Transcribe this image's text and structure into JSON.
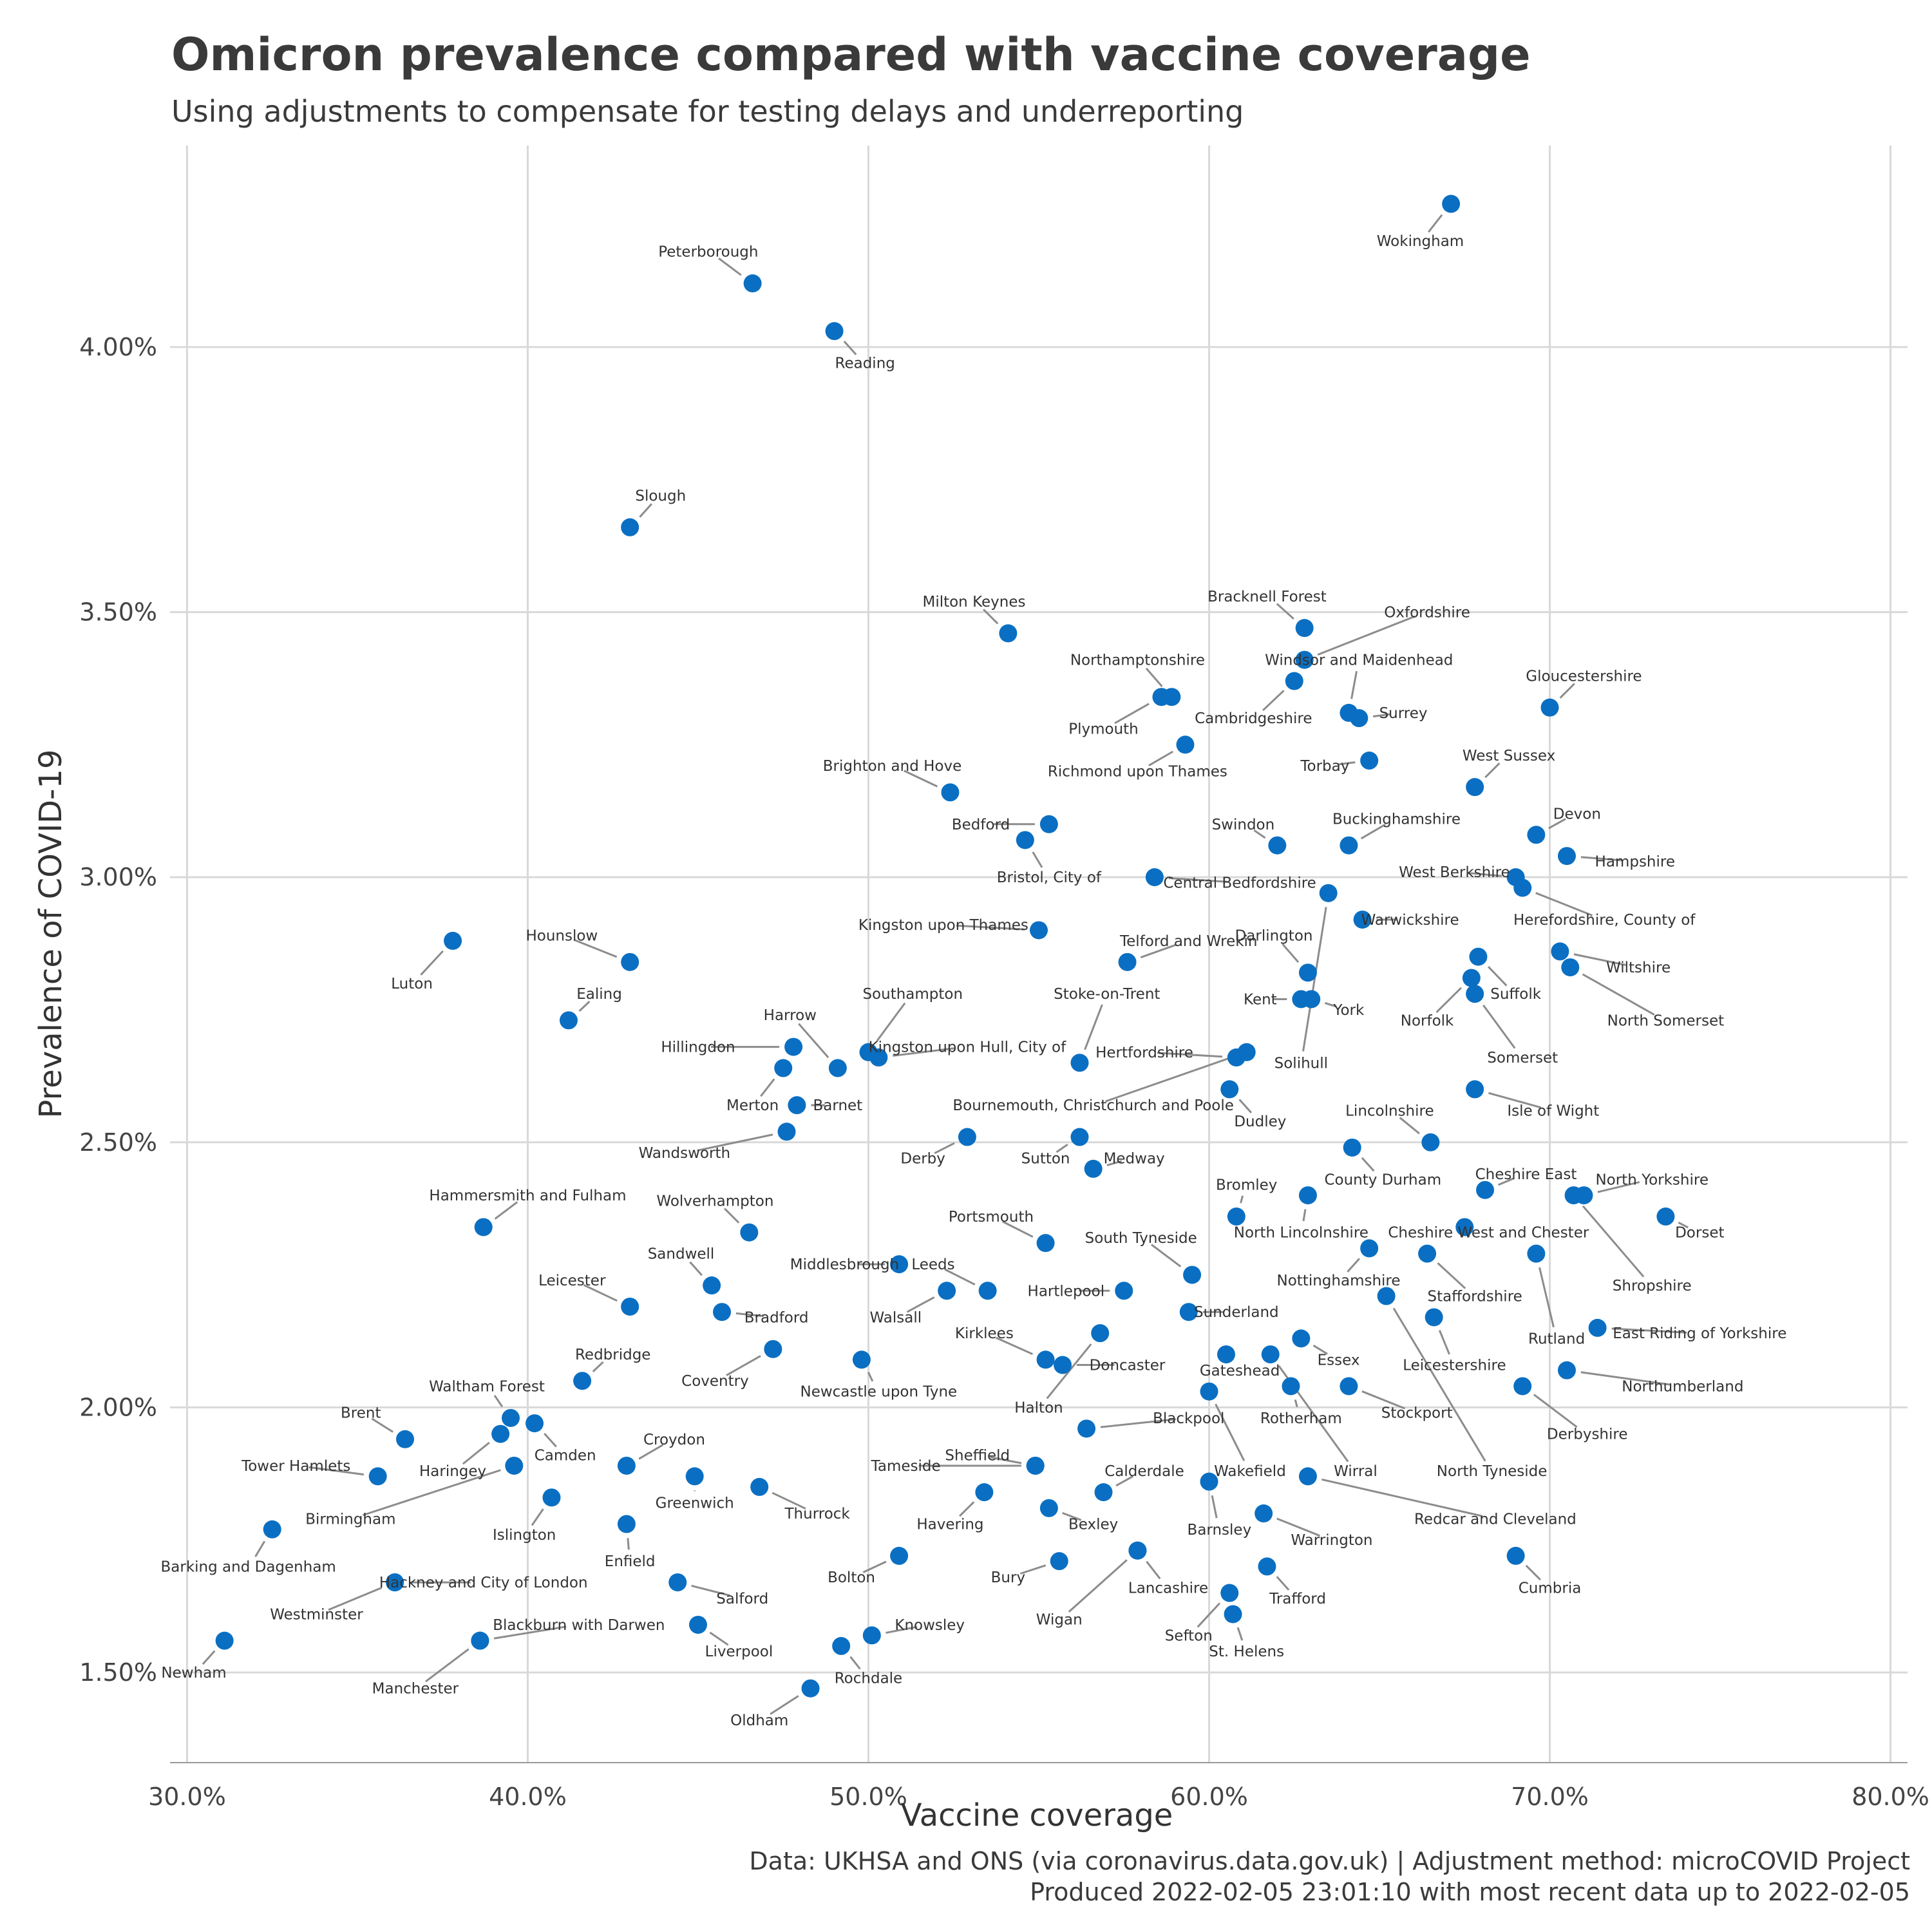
{
  "title": "Omicron prevalence compared with vaccine coverage",
  "subtitle": "Using adjustments to compensate for testing delays and underreporting",
  "caption_line1": "Data: UKHSA and ONS (via coronavirus.data.gov.uk) | Adjustment method: microCOVID Project",
  "caption_line2": "Produced 2022-02-05 23:01:10 with most recent data up to 2022-02-05",
  "colors": {
    "point": "#0a6fc2",
    "grid": "#d9d9d9",
    "leader": "#8c8c8c"
  },
  "chart_data": {
    "type": "scatter",
    "xlabel": "Vaccine coverage",
    "ylabel": "Prevalence of COVID-19",
    "xlim": [
      29.5,
      80.5
    ],
    "ylim": [
      1.33,
      4.38
    ],
    "x_ticks": [
      {
        "value": 30,
        "label": "30.0%"
      },
      {
        "value": 40,
        "label": "40.0%"
      },
      {
        "value": 50,
        "label": "50.0%"
      },
      {
        "value": 60,
        "label": "60.0%"
      },
      {
        "value": 70,
        "label": "70.0%"
      },
      {
        "value": 80,
        "label": "80.0%"
      }
    ],
    "y_ticks": [
      {
        "value": 1.5,
        "label": "1.50%"
      },
      {
        "value": 2.0,
        "label": "2.00%"
      },
      {
        "value": 2.5,
        "label": "2.50%"
      },
      {
        "value": 3.0,
        "label": "3.00%"
      },
      {
        "value": 3.5,
        "label": "3.50%"
      },
      {
        "value": 4.0,
        "label": "4.00%"
      }
    ],
    "grid": true,
    "points": [
      {
        "name": "Wokingham",
        "x": 67.1,
        "y": 4.27,
        "lx": 66.2,
        "ly": 4.2
      },
      {
        "name": "Peterborough",
        "x": 46.6,
        "y": 4.12,
        "lx": 45.3,
        "ly": 4.18
      },
      {
        "name": "Reading",
        "x": 49.0,
        "y": 4.03,
        "lx": 49.9,
        "ly": 3.97
      },
      {
        "name": "Slough",
        "x": 43.0,
        "y": 3.66,
        "lx": 43.9,
        "ly": 3.72
      },
      {
        "name": "Milton Keynes",
        "x": 54.1,
        "y": 3.46,
        "lx": 53.1,
        "ly": 3.52
      },
      {
        "name": "Bracknell Forest",
        "x": 62.8,
        "y": 3.47,
        "lx": 61.7,
        "ly": 3.53
      },
      {
        "name": "Oxfordshire",
        "x": 62.8,
        "y": 3.41,
        "lx": 66.4,
        "ly": 3.5
      },
      {
        "name": "Windsor and Maidenhead",
        "x": 64.1,
        "y": 3.31,
        "lx": 64.4,
        "ly": 3.41
      },
      {
        "name": "Northamptonshire",
        "x": 58.9,
        "y": 3.34,
        "lx": 57.9,
        "ly": 3.41
      },
      {
        "name": "Cambridgeshire",
        "x": 62.5,
        "y": 3.37,
        "lx": 61.3,
        "ly": 3.3
      },
      {
        "name": "Surrey",
        "x": 64.4,
        "y": 3.3,
        "lx": 65.7,
        "ly": 3.31
      },
      {
        "name": "Gloucestershire",
        "x": 70.0,
        "y": 3.32,
        "lx": 71.0,
        "ly": 3.38
      },
      {
        "name": "Plymouth",
        "x": 58.6,
        "y": 3.34,
        "lx": 56.9,
        "ly": 3.28
      },
      {
        "name": "Richmond upon Thames",
        "x": 59.3,
        "y": 3.25,
        "lx": 57.9,
        "ly": 3.2
      },
      {
        "name": "Torbay",
        "x": 64.7,
        "y": 3.22,
        "lx": 63.4,
        "ly": 3.21
      },
      {
        "name": "West Sussex",
        "x": 67.8,
        "y": 3.17,
        "lx": 68.8,
        "ly": 3.23
      },
      {
        "name": "Brighton and Hove",
        "x": 52.4,
        "y": 3.16,
        "lx": 50.7,
        "ly": 3.21
      },
      {
        "name": "Bedford",
        "x": 55.3,
        "y": 3.1,
        "lx": 53.3,
        "ly": 3.1
      },
      {
        "name": "Swindon",
        "x": 62.0,
        "y": 3.06,
        "lx": 61.0,
        "ly": 3.1
      },
      {
        "name": "Buckinghamshire",
        "x": 64.1,
        "y": 3.06,
        "lx": 65.5,
        "ly": 3.11
      },
      {
        "name": "Devon",
        "x": 69.6,
        "y": 3.08,
        "lx": 70.8,
        "ly": 3.12
      },
      {
        "name": "Bristol, City of",
        "x": 54.6,
        "y": 3.07,
        "lx": 55.3,
        "ly": 3.0
      },
      {
        "name": "Hampshire",
        "x": 70.5,
        "y": 3.04,
        "lx": 72.5,
        "ly": 3.03
      },
      {
        "name": "West Berkshire",
        "x": 69.0,
        "y": 3.0,
        "lx": 67.2,
        "ly": 3.01
      },
      {
        "name": "Central Bedfordshire",
        "x": 58.4,
        "y": 3.0,
        "lx": 60.9,
        "ly": 2.99
      },
      {
        "name": "Herefordshire, County of",
        "x": 69.2,
        "y": 2.98,
        "lx": 71.6,
        "ly": 2.92
      },
      {
        "name": "Solihull",
        "x": 63.5,
        "y": 2.97,
        "lx": 62.7,
        "ly": 2.65
      },
      {
        "name": "Warwickshire",
        "x": 64.5,
        "y": 2.92,
        "lx": 65.9,
        "ly": 2.92
      },
      {
        "name": "Kingston upon Thames",
        "x": 55.0,
        "y": 2.9,
        "lx": 52.2,
        "ly": 2.91
      },
      {
        "name": "Telford and Wrekin",
        "x": 57.6,
        "y": 2.84,
        "lx": 59.4,
        "ly": 2.88
      },
      {
        "name": "Luton",
        "x": 37.8,
        "y": 2.88,
        "lx": 36.6,
        "ly": 2.8
      },
      {
        "name": "Hounslow",
        "x": 43.0,
        "y": 2.84,
        "lx": 41.0,
        "ly": 2.89
      },
      {
        "name": "Darlington",
        "x": 62.9,
        "y": 2.82,
        "lx": 61.9,
        "ly": 2.89
      },
      {
        "name": "Wiltshire",
        "x": 70.3,
        "y": 2.86,
        "lx": 72.6,
        "ly": 2.83
      },
      {
        "name": "Norfolk",
        "x": 67.7,
        "y": 2.81,
        "lx": 66.4,
        "ly": 2.73
      },
      {
        "name": "Suffolk",
        "x": 67.9,
        "y": 2.85,
        "lx": 69.0,
        "ly": 2.78
      },
      {
        "name": "North Somerset",
        "x": 70.6,
        "y": 2.83,
        "lx": 73.4,
        "ly": 2.73
      },
      {
        "name": "Kent",
        "x": 62.7,
        "y": 2.77,
        "lx": 61.5,
        "ly": 2.77
      },
      {
        "name": "York",
        "x": 63.0,
        "y": 2.77,
        "lx": 64.1,
        "ly": 2.75
      },
      {
        "name": "Ealing",
        "x": 41.2,
        "y": 2.73,
        "lx": 42.1,
        "ly": 2.78
      },
      {
        "name": "Southampton",
        "x": 50.0,
        "y": 2.67,
        "lx": 51.3,
        "ly": 2.78
      },
      {
        "name": "Stoke-on-Trent",
        "x": 56.2,
        "y": 2.65,
        "lx": 57.0,
        "ly": 2.78
      },
      {
        "name": "Harrow",
        "x": 49.1,
        "y": 2.64,
        "lx": 47.7,
        "ly": 2.74
      },
      {
        "name": "Hillingdon",
        "x": 47.8,
        "y": 2.68,
        "lx": 45.0,
        "ly": 2.68
      },
      {
        "name": "Kingston upon Hull, City of",
        "x": 50.3,
        "y": 2.66,
        "lx": 52.9,
        "ly": 2.68
      },
      {
        "name": "Hertfordshire",
        "x": 60.8,
        "y": 2.66,
        "lx": 58.1,
        "ly": 2.67
      },
      {
        "name": "Merton",
        "x": 47.5,
        "y": 2.64,
        "lx": 46.6,
        "ly": 2.57
      },
      {
        "name": "Barnet",
        "x": 47.9,
        "y": 2.57,
        "lx": 49.1,
        "ly": 2.57
      },
      {
        "name": "Bournemouth, Christchurch and Poole",
        "x": 61.1,
        "y": 2.67,
        "lx": 56.6,
        "ly": 2.57
      },
      {
        "name": "Dudley",
        "x": 60.6,
        "y": 2.6,
        "lx": 61.5,
        "ly": 2.54
      },
      {
        "name": "Somerset",
        "x": 67.8,
        "y": 2.78,
        "lx": 69.2,
        "ly": 2.66
      },
      {
        "name": "Isle of Wight",
        "x": 67.8,
        "y": 2.6,
        "lx": 70.1,
        "ly": 2.56
      },
      {
        "name": "Lincolnshire",
        "x": 66.5,
        "y": 2.5,
        "lx": 65.3,
        "ly": 2.56
      },
      {
        "name": "Wandsworth",
        "x": 47.6,
        "y": 2.52,
        "lx": 44.6,
        "ly": 2.48
      },
      {
        "name": "Derby",
        "x": 52.9,
        "y": 2.51,
        "lx": 51.6,
        "ly": 2.47
      },
      {
        "name": "Sutton",
        "x": 56.2,
        "y": 2.51,
        "lx": 55.2,
        "ly": 2.47
      },
      {
        "name": "Medway",
        "x": 56.6,
        "y": 2.45,
        "lx": 57.8,
        "ly": 2.47
      },
      {
        "name": "County Durham",
        "x": 64.2,
        "y": 2.49,
        "lx": 65.1,
        "ly": 2.43
      },
      {
        "name": "Cheshire East",
        "x": 68.1,
        "y": 2.41,
        "lx": 69.3,
        "ly": 2.44
      },
      {
        "name": "North Yorkshire",
        "x": 71.0,
        "y": 2.4,
        "lx": 73.0,
        "ly": 2.43
      },
      {
        "name": "Bromley",
        "x": 60.8,
        "y": 2.36,
        "lx": 61.1,
        "ly": 2.42
      },
      {
        "name": "Hammersmith and Fulham",
        "x": 38.7,
        "y": 2.34,
        "lx": 40.0,
        "ly": 2.4
      },
      {
        "name": "Wolverhampton",
        "x": 46.5,
        "y": 2.33,
        "lx": 45.5,
        "ly": 2.39
      },
      {
        "name": "Portsmouth",
        "x": 55.2,
        "y": 2.31,
        "lx": 53.6,
        "ly": 2.36
      },
      {
        "name": "North Lincolnshire",
        "x": 62.9,
        "y": 2.4,
        "lx": 62.7,
        "ly": 2.33
      },
      {
        "name": "Cheshire West and Chester",
        "x": 67.5,
        "y": 2.34,
        "lx": 68.2,
        "ly": 2.33
      },
      {
        "name": "Dorset",
        "x": 73.4,
        "y": 2.36,
        "lx": 74.4,
        "ly": 2.33
      },
      {
        "name": "South Tyneside",
        "x": 59.5,
        "y": 2.25,
        "lx": 58.0,
        "ly": 2.32
      },
      {
        "name": "Shropshire",
        "x": 70.7,
        "y": 2.4,
        "lx": 73.0,
        "ly": 2.23
      },
      {
        "name": "Sandwell",
        "x": 45.4,
        "y": 2.23,
        "lx": 44.5,
        "ly": 2.29
      },
      {
        "name": "Middlesbrough",
        "x": 50.9,
        "y": 2.27,
        "lx": 49.3,
        "ly": 2.27
      },
      {
        "name": "Leeds",
        "x": 53.5,
        "y": 2.22,
        "lx": 51.9,
        "ly": 2.27
      },
      {
        "name": "Nottinghamshire",
        "x": 64.7,
        "y": 2.3,
        "lx": 63.8,
        "ly": 2.24
      },
      {
        "name": "Staffordshire",
        "x": 66.4,
        "y": 2.29,
        "lx": 67.8,
        "ly": 2.21
      },
      {
        "name": "Leicester",
        "x": 43.0,
        "y": 2.19,
        "lx": 41.3,
        "ly": 2.24
      },
      {
        "name": "Bradford",
        "x": 45.7,
        "y": 2.18,
        "lx": 47.3,
        "ly": 2.17
      },
      {
        "name": "Walsall",
        "x": 52.3,
        "y": 2.22,
        "lx": 50.8,
        "ly": 2.17
      },
      {
        "name": "Hartlepool",
        "x": 57.5,
        "y": 2.22,
        "lx": 55.8,
        "ly": 2.22
      },
      {
        "name": "Sunderland",
        "x": 59.4,
        "y": 2.18,
        "lx": 60.8,
        "ly": 2.18
      },
      {
        "name": "Rutland",
        "x": 69.6,
        "y": 2.29,
        "lx": 70.2,
        "ly": 2.13
      },
      {
        "name": "East Riding of Yorkshire",
        "x": 71.4,
        "y": 2.15,
        "lx": 74.4,
        "ly": 2.14
      },
      {
        "name": "Kirklees",
        "x": 55.2,
        "y": 2.09,
        "lx": 53.4,
        "ly": 2.14
      },
      {
        "name": "Leicestershire",
        "x": 66.6,
        "y": 2.17,
        "lx": 67.2,
        "ly": 2.08
      },
      {
        "name": "Coventry",
        "x": 47.2,
        "y": 2.11,
        "lx": 45.5,
        "ly": 2.05
      },
      {
        "name": "Newcastle upon Tyne",
        "x": 49.8,
        "y": 2.09,
        "lx": 50.3,
        "ly": 2.03
      },
      {
        "name": "Redbridge",
        "x": 41.6,
        "y": 2.05,
        "lx": 42.5,
        "ly": 2.1
      },
      {
        "name": "Doncaster",
        "x": 55.7,
        "y": 2.08,
        "lx": 57.6,
        "ly": 2.08
      },
      {
        "name": "Gateshead",
        "x": 60.5,
        "y": 2.1,
        "lx": 60.9,
        "ly": 2.07
      },
      {
        "name": "Essex",
        "x": 62.7,
        "y": 2.13,
        "lx": 63.8,
        "ly": 2.09
      },
      {
        "name": "Halton",
        "x": 56.8,
        "y": 2.14,
        "lx": 55.0,
        "ly": 2.0
      },
      {
        "name": "Northumberland",
        "x": 70.5,
        "y": 2.07,
        "lx": 73.9,
        "ly": 2.04
      },
      {
        "name": "Waltham Forest",
        "x": 39.5,
        "y": 1.98,
        "lx": 38.8,
        "ly": 2.04
      },
      {
        "name": "Brent",
        "x": 36.4,
        "y": 1.94,
        "lx": 35.1,
        "ly": 1.99
      },
      {
        "name": "Rotherham",
        "x": 62.4,
        "y": 2.04,
        "lx": 62.7,
        "ly": 1.98
      },
      {
        "name": "Stockport",
        "x": 64.1,
        "y": 2.04,
        "lx": 66.1,
        "ly": 1.99
      },
      {
        "name": "Blackpool",
        "x": 56.4,
        "y": 1.96,
        "lx": 59.4,
        "ly": 1.98
      },
      {
        "name": "Derbyshire",
        "x": 69.2,
        "y": 2.04,
        "lx": 71.1,
        "ly": 1.95
      },
      {
        "name": "Camden",
        "x": 40.2,
        "y": 1.97,
        "lx": 41.1,
        "ly": 1.91
      },
      {
        "name": "Croydon",
        "x": 42.9,
        "y": 1.89,
        "lx": 44.3,
        "ly": 1.94
      },
      {
        "name": "Haringey",
        "x": 39.2,
        "y": 1.95,
        "lx": 37.8,
        "ly": 1.88
      },
      {
        "name": "Tower Hamlets",
        "x": 35.6,
        "y": 1.87,
        "lx": 33.2,
        "ly": 1.89
      },
      {
        "name": "Tameside",
        "x": 54.9,
        "y": 1.89,
        "lx": 51.1,
        "ly": 1.89
      },
      {
        "name": "Sheffield",
        "x": 54.9,
        "y": 1.89,
        "lx": 53.2,
        "ly": 1.91
      },
      {
        "name": "Calderdale",
        "x": 56.9,
        "y": 1.84,
        "lx": 58.1,
        "ly": 1.88
      },
      {
        "name": "Wakefield",
        "x": 60.0,
        "y": 2.03,
        "lx": 61.2,
        "ly": 1.88
      },
      {
        "name": "Wirral",
        "x": 61.8,
        "y": 2.1,
        "lx": 64.3,
        "ly": 1.88
      },
      {
        "name": "North Tyneside",
        "x": 65.2,
        "y": 2.21,
        "lx": 68.3,
        "ly": 1.88
      },
      {
        "name": "Thurrock",
        "x": 46.8,
        "y": 1.85,
        "lx": 48.5,
        "ly": 1.8
      },
      {
        "name": "Greenwich",
        "x": 44.9,
        "y": 1.87,
        "lx": 44.9,
        "ly": 1.82
      },
      {
        "name": "Birmingham",
        "x": 39.6,
        "y": 1.89,
        "lx": 34.8,
        "ly": 1.79
      },
      {
        "name": "Islington",
        "x": 40.7,
        "y": 1.83,
        "lx": 39.9,
        "ly": 1.76
      },
      {
        "name": "Havering",
        "x": 53.4,
        "y": 1.84,
        "lx": 52.4,
        "ly": 1.78
      },
      {
        "name": "Bexley",
        "x": 55.3,
        "y": 1.81,
        "lx": 56.6,
        "ly": 1.78
      },
      {
        "name": "Redcar and Cleveland",
        "x": 62.9,
        "y": 1.87,
        "lx": 68.4,
        "ly": 1.79
      },
      {
        "name": "Barnsley",
        "x": 60.0,
        "y": 1.86,
        "lx": 60.3,
        "ly": 1.77
      },
      {
        "name": "Warrington",
        "x": 61.6,
        "y": 1.8,
        "lx": 63.6,
        "ly": 1.75
      },
      {
        "name": "Barking and Dagenham",
        "x": 32.5,
        "y": 1.77,
        "lx": 31.8,
        "ly": 1.7
      },
      {
        "name": "Enfield",
        "x": 42.9,
        "y": 1.78,
        "lx": 43.0,
        "ly": 1.71
      },
      {
        "name": "Bolton",
        "x": 50.9,
        "y": 1.72,
        "lx": 49.5,
        "ly": 1.68
      },
      {
        "name": "Lancashire",
        "x": 57.9,
        "y": 1.73,
        "lx": 58.8,
        "ly": 1.66
      },
      {
        "name": "Bury",
        "x": 55.6,
        "y": 1.71,
        "lx": 54.1,
        "ly": 1.68
      },
      {
        "name": "Trafford",
        "x": 61.7,
        "y": 1.7,
        "lx": 62.6,
        "ly": 1.64
      },
      {
        "name": "Cumbria",
        "x": 69.0,
        "y": 1.72,
        "lx": 70.0,
        "ly": 1.66
      },
      {
        "name": "Hackney and City of London",
        "x": 36.1,
        "y": 1.67,
        "lx": 38.7,
        "ly": 1.67
      },
      {
        "name": "Salford",
        "x": 44.4,
        "y": 1.67,
        "lx": 46.3,
        "ly": 1.64
      },
      {
        "name": "Westminster",
        "x": 36.1,
        "y": 1.67,
        "lx": 33.8,
        "ly": 1.61
      },
      {
        "name": "Wigan",
        "x": 57.9,
        "y": 1.73,
        "lx": 55.6,
        "ly": 1.6
      },
      {
        "name": "Sefton",
        "x": 60.6,
        "y": 1.65,
        "lx": 59.4,
        "ly": 1.57
      },
      {
        "name": "St. Helens",
        "x": 60.7,
        "y": 1.61,
        "lx": 61.1,
        "ly": 1.54
      },
      {
        "name": "Blackburn with Darwen",
        "x": 38.6,
        "y": 1.56,
        "lx": 41.5,
        "ly": 1.59
      },
      {
        "name": "Knowsley",
        "x": 50.1,
        "y": 1.57,
        "lx": 51.8,
        "ly": 1.59
      },
      {
        "name": "Liverpool",
        "x": 45.0,
        "y": 1.59,
        "lx": 46.2,
        "ly": 1.54
      },
      {
        "name": "Newham",
        "x": 31.1,
        "y": 1.56,
        "lx": 30.2,
        "ly": 1.5
      },
      {
        "name": "Manchester",
        "x": 38.6,
        "y": 1.56,
        "lx": 36.7,
        "ly": 1.47
      },
      {
        "name": "Rochdale",
        "x": 49.2,
        "y": 1.55,
        "lx": 50.0,
        "ly": 1.49
      },
      {
        "name": "Oldham",
        "x": 48.3,
        "y": 1.47,
        "lx": 46.8,
        "ly": 1.41
      }
    ]
  }
}
